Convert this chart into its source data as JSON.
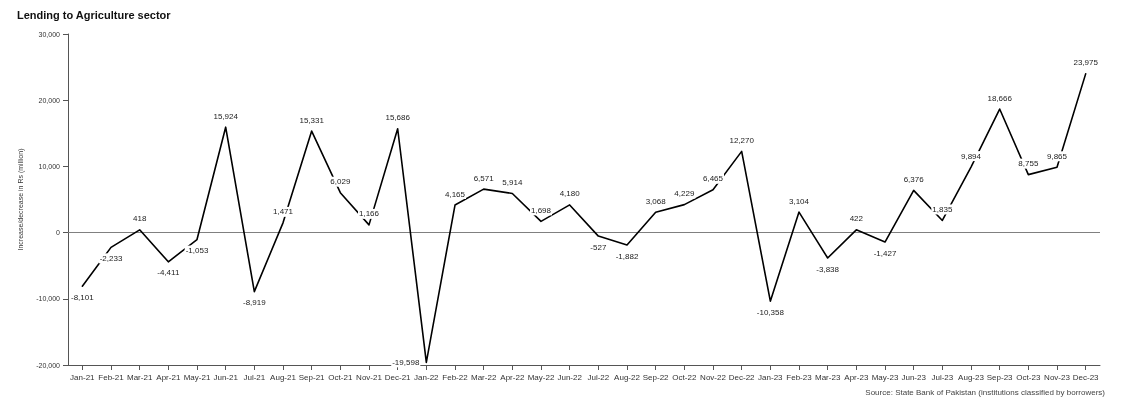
{
  "chart_data": {
    "type": "line",
    "title": "Lending to Agriculture sector",
    "ylabel": "Increase/decrease in Rs (million)",
    "categories": [
      "Jan-21",
      "Feb-21",
      "Mar-21",
      "Apr-21",
      "May-21",
      "Jun-21",
      "Jul-21",
      "Aug-21",
      "Sep-21",
      "Oct-21",
      "Nov-21",
      "Dec-21",
      "Jan-22",
      "Feb-22",
      "Mar-22",
      "Apr-22",
      "May-22",
      "Jun-22",
      "Jul-22",
      "Aug-22",
      "Sep-22",
      "Oct-22",
      "Nov-22",
      "Dec-22",
      "Jan-23",
      "Feb-23",
      "Mar-23",
      "Apr-23",
      "May-23",
      "Jun-23",
      "Jul-23",
      "Aug-23",
      "Sep-23",
      "Oct-23",
      "Nov-23",
      "Dec-23"
    ],
    "series": [
      {
        "color": "#000000",
        "values": [
          -8101,
          -2233,
          418,
          -4411,
          -1053,
          15924,
          -8919,
          1471,
          15331,
          6029,
          1166,
          15686,
          -19598,
          4165,
          6571,
          5914,
          1698,
          4180,
          -527,
          -1882,
          3068,
          4229,
          6465,
          12270,
          -10358,
          3104,
          -3838,
          422,
          -1427,
          6376,
          1835,
          9894,
          18666,
          8755,
          9865,
          23975
        ],
        "value_labels": [
          "-8,101",
          "-2,233",
          "418",
          "-4,411",
          "-1,053",
          "15,924",
          "-8,919",
          "1,471",
          "15,331",
          "6,029",
          "1,166",
          "15,686",
          "-19,598",
          "4,165",
          "6,571",
          "5,914",
          "1,698",
          "4,180",
          "-527",
          "-1,882",
          "3,068",
          "4,229",
          "6,465",
          "12,270",
          "-10,358",
          "3,104",
          "-3,838",
          "422",
          "-1,427",
          "6,376",
          "1,835",
          "9,894",
          "18,666",
          "8,755",
          "9,865",
          "23,975"
        ]
      }
    ],
    "ylim": [
      -20000,
      30000
    ],
    "yticks": [
      {
        "value": -20000,
        "label": "-20,000"
      },
      {
        "value": -10000,
        "label": "-10,000"
      },
      0,
      {
        "value": 10000,
        "label": "10,000"
      },
      {
        "value": 20000,
        "label": "20,000"
      },
      {
        "value": 30000,
        "label": "30,000"
      }
    ],
    "ref_lines": [
      {
        "axis": "y",
        "value": 0,
        "color": "#808080"
      }
    ],
    "grid": false,
    "marker": "none",
    "line_style": "solid",
    "annotations": [
      "Source: State Bank of Pakistan (institutions classified by borrowers)"
    ]
  }
}
